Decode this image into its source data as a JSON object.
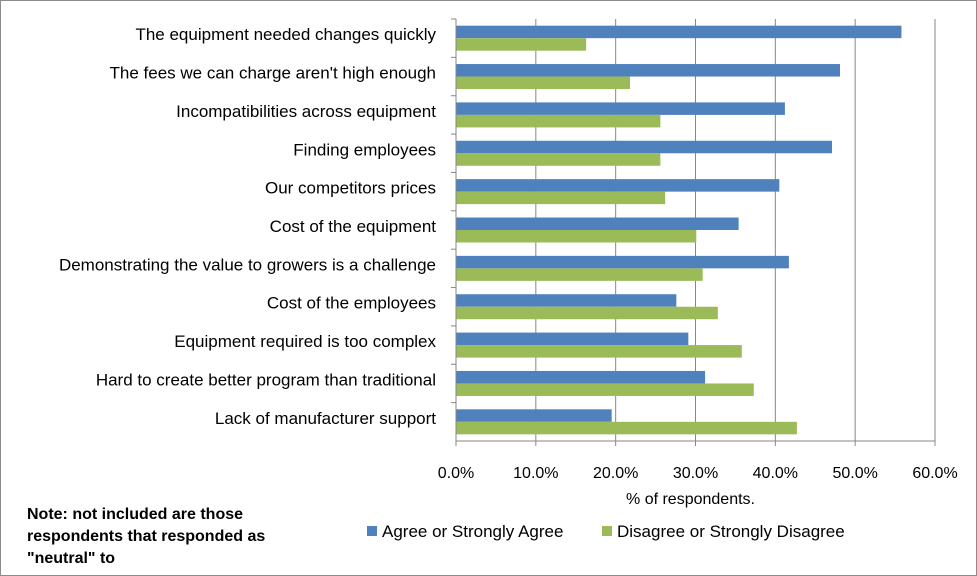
{
  "chart_data": {
    "type": "bar",
    "orientation": "horizontal",
    "categories": [
      "The equipment needed changes quickly",
      "The fees we can charge aren't high enough",
      "Incompatibilities across equipment",
      "Finding employees",
      "Our competitors prices",
      "Cost of the equipment",
      "Demonstrating the value to growers is a challenge",
      "Cost of the employees",
      "Equipment required is too complex",
      "Hard to create better program than traditional",
      "Lack of manufacturer support"
    ],
    "series": [
      {
        "name": "Agree or Strongly Agree",
        "color": "#4f81bd",
        "values": [
          55.8,
          48.1,
          41.2,
          47.1,
          40.5,
          35.4,
          41.7,
          27.6,
          29.1,
          31.2,
          19.5
        ]
      },
      {
        "name": "Disagree or Strongly Disagree",
        "color": "#9bbb59",
        "values": [
          16.3,
          21.8,
          25.6,
          25.6,
          26.2,
          30.1,
          30.9,
          32.8,
          35.8,
          37.3,
          42.7
        ]
      }
    ],
    "xlabel": "% of respondents.",
    "ylabel": "",
    "xlim": [
      0,
      60
    ],
    "xticks": [
      "0.0%",
      "10.0%",
      "20.0%",
      "30.0%",
      "40.0%",
      "50.0%",
      "60.0%"
    ],
    "grid": true,
    "legend": "bottom"
  },
  "note": "Note: not included are those respondents that responded as \"neutral\" to"
}
